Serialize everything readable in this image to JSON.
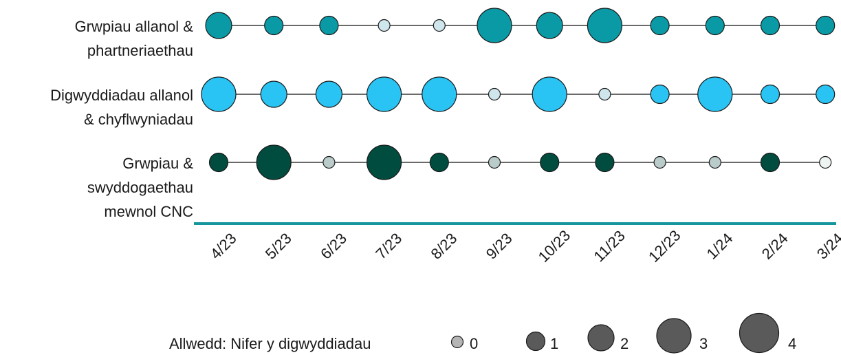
{
  "chart_data": {
    "type": "scatter",
    "categories": [
      "4/23",
      "5/23",
      "6/23",
      "7/23",
      "8/23",
      "9/23",
      "10/23",
      "11/23",
      "12/23",
      "1/24",
      "2/24",
      "3/24"
    ],
    "series": [
      {
        "name_lines": [
          "Grwpiau allanol &",
          "phartneriaethau"
        ],
        "color": "#0a9aa6",
        "values": [
          2,
          1,
          1,
          0,
          0,
          3,
          2,
          3,
          1,
          1,
          1,
          1
        ]
      },
      {
        "name_lines": [
          "Digwyddiadau allanol",
          "& chyflwyniadau"
        ],
        "color": "#29c4f3",
        "values": [
          3,
          2,
          2,
          3,
          3,
          0,
          3,
          0,
          1,
          3,
          1,
          1
        ]
      },
      {
        "name_lines": [
          "Grwpiau &",
          "swyddogaethau",
          "mewnol CNC"
        ],
        "color": "#004d40",
        "values": [
          1,
          3,
          0,
          3,
          1,
          0,
          1,
          1,
          0,
          0,
          1,
          0
        ]
      }
    ],
    "zero_color": "#b9ccc9",
    "zero_color_light": "#cfe6ec",
    "axis_color": "#14969c",
    "legend": {
      "title": "Allwedd: Nifer y digwyddiadau",
      "color": "#5a5a5a",
      "zero_color": "#b5b5b5",
      "items": [
        {
          "label": "0",
          "value": 0
        },
        {
          "label": "1",
          "value": 1
        },
        {
          "label": "2",
          "value": 2
        },
        {
          "label": "3",
          "value": 3
        },
        {
          "label": "4",
          "value": 4
        }
      ]
    }
  }
}
